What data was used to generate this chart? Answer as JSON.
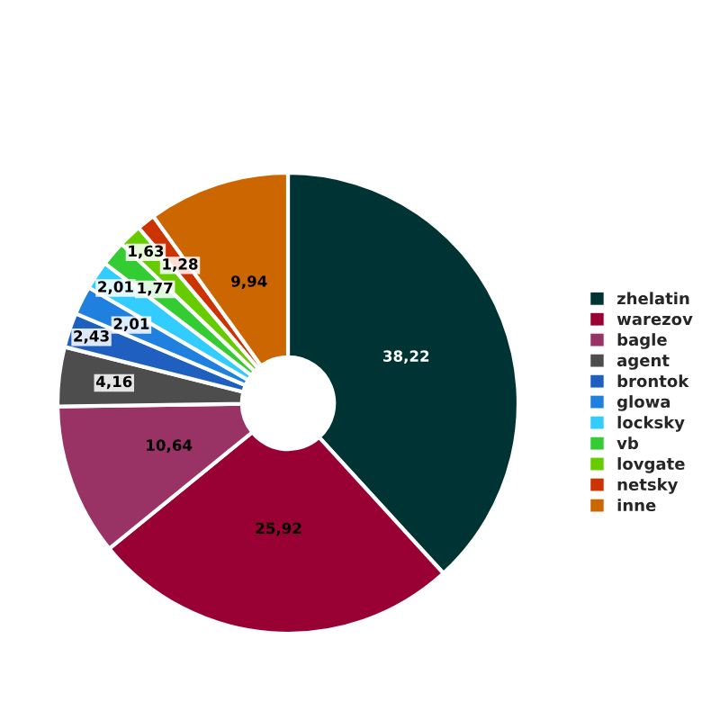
{
  "chart_data": {
    "type": "donut",
    "categories": [
      "zhelatin",
      "warezov",
      "bagle",
      "agent",
      "brontok",
      "glowa",
      "locksky",
      "vb",
      "lovgate",
      "netsky",
      "inne"
    ],
    "values": [
      38.22,
      25.92,
      10.64,
      4.16,
      2.43,
      2.01,
      2.01,
      1.77,
      1.63,
      1.28,
      9.94
    ],
    "value_labels": [
      "38,22",
      "25,92",
      "10,64",
      "4,16",
      "2,43",
      "2,01",
      "2,01",
      "1,77",
      "1,63",
      "1,28",
      "9,94"
    ],
    "colors": [
      "#003333",
      "#990033",
      "#993366",
      "#4d4d4d",
      "#1f5fbf",
      "#2080e0",
      "#33ccff",
      "#33cc33",
      "#66cc00",
      "#cc3300",
      "#cc6600"
    ],
    "legend": "right"
  }
}
